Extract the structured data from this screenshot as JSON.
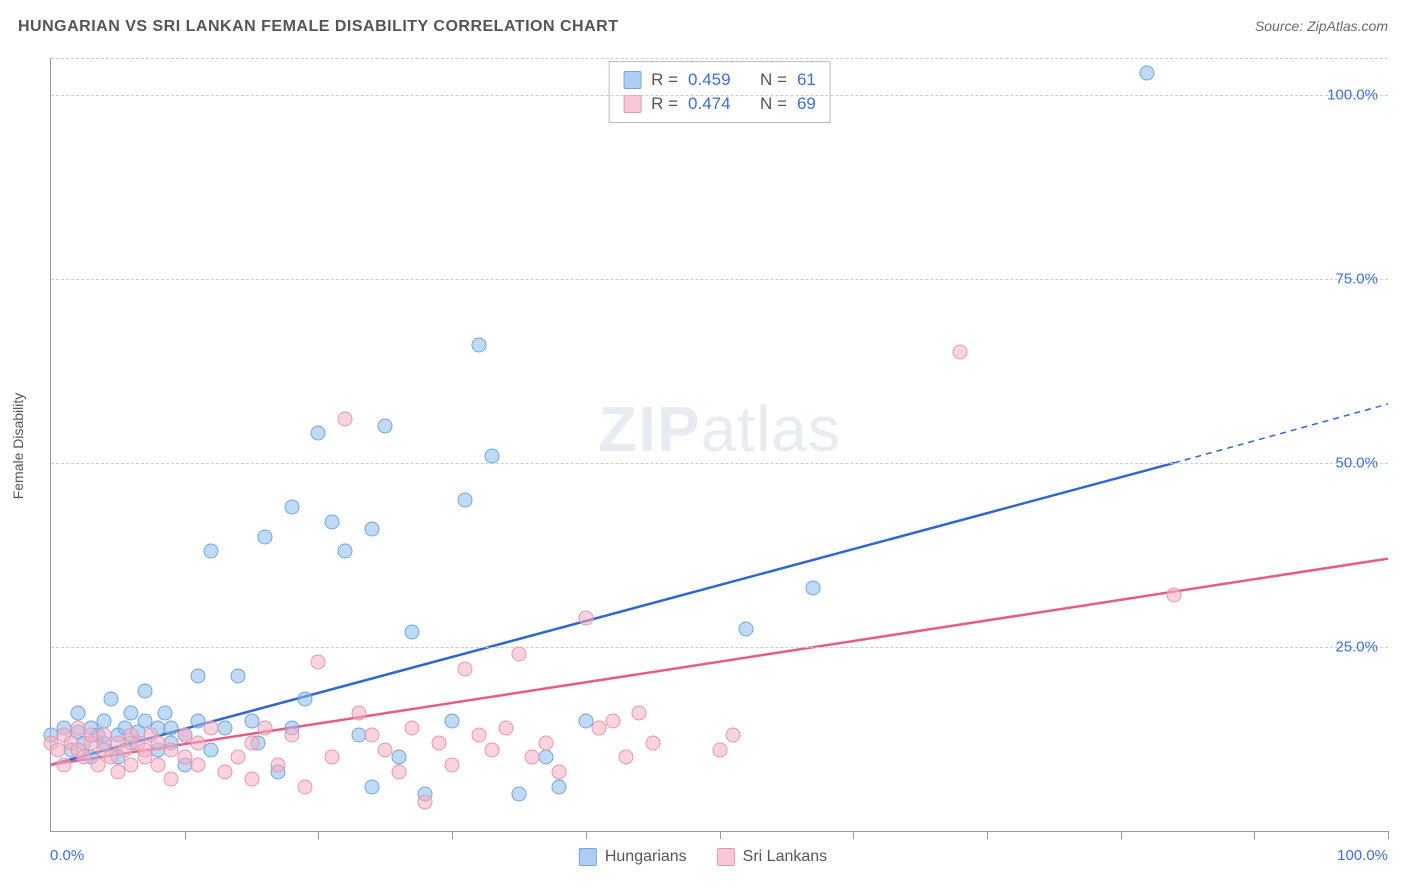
{
  "title": "HUNGARIAN VS SRI LANKAN FEMALE DISABILITY CORRELATION CHART",
  "source": "Source: ZipAtlas.com",
  "watermark_bold": "ZIP",
  "watermark_rest": "atlas",
  "y_axis_label": "Female Disability",
  "chart": {
    "type": "scatter",
    "xlim": [
      0,
      100
    ],
    "ylim": [
      0,
      105
    ],
    "x_ticks": [
      0,
      10,
      20,
      30,
      40,
      50,
      60,
      70,
      80,
      90,
      100
    ],
    "y_gridlines": [
      25,
      50,
      75,
      100,
      105
    ],
    "y_tick_labels": [
      "25.0%",
      "50.0%",
      "75.0%",
      "100.0%"
    ],
    "x_tick_labels": {
      "left": "0.0%",
      "right": "100.0%"
    },
    "background_color": "#ffffff",
    "grid_color": "#cccccc",
    "axis_color": "#999999",
    "label_color": "#3b6fd4",
    "marker_size": 15,
    "series": [
      {
        "name": "Hungarians",
        "color_fill": "rgba(140,185,235,0.55)",
        "color_stroke": "#6fa6de",
        "trend_color": "#2f66d0",
        "trend_width": 2.5,
        "trend": {
          "x1": 0,
          "y1": 9,
          "x2_solid": 84,
          "y2_solid": 50,
          "x2_dash": 100,
          "y2_dash": 58
        },
        "R": "0.459",
        "N": "61",
        "points": [
          [
            0,
            13
          ],
          [
            1,
            14
          ],
          [
            1.5,
            11
          ],
          [
            2,
            13.5
          ],
          [
            2,
            16
          ],
          [
            2.5,
            12
          ],
          [
            3,
            14
          ],
          [
            3,
            10
          ],
          [
            3.5,
            13
          ],
          [
            4,
            15
          ],
          [
            4,
            12
          ],
          [
            4.5,
            18
          ],
          [
            5,
            13
          ],
          [
            5,
            10
          ],
          [
            5.5,
            14
          ],
          [
            6,
            16
          ],
          [
            6,
            12
          ],
          [
            6.5,
            13.5
          ],
          [
            7,
            15
          ],
          [
            7,
            19
          ],
          [
            8,
            14
          ],
          [
            8,
            11
          ],
          [
            8.5,
            16
          ],
          [
            9,
            12
          ],
          [
            9,
            14
          ],
          [
            10,
            13
          ],
          [
            10,
            9
          ],
          [
            11,
            15
          ],
          [
            11,
            21
          ],
          [
            12,
            11
          ],
          [
            12,
            38
          ],
          [
            13,
            14
          ],
          [
            14,
            21
          ],
          [
            15,
            15
          ],
          [
            15.5,
            12
          ],
          [
            16,
            40
          ],
          [
            17,
            8
          ],
          [
            18,
            14
          ],
          [
            18,
            44
          ],
          [
            19,
            18
          ],
          [
            20,
            54
          ],
          [
            21,
            42
          ],
          [
            22,
            38
          ],
          [
            23,
            13
          ],
          [
            24,
            6
          ],
          [
            24,
            41
          ],
          [
            25,
            55
          ],
          [
            26,
            10
          ],
          [
            27,
            27
          ],
          [
            28,
            5
          ],
          [
            30,
            15
          ],
          [
            31,
            45
          ],
          [
            32,
            66
          ],
          [
            33,
            51
          ],
          [
            35,
            5
          ],
          [
            37,
            10
          ],
          [
            38,
            6
          ],
          [
            40,
            15
          ],
          [
            52,
            27.5
          ],
          [
            57,
            33
          ],
          [
            82,
            103
          ]
        ]
      },
      {
        "name": "Sri Lankans",
        "color_fill": "rgba(245,175,195,0.55)",
        "color_stroke": "#e796af",
        "trend_color": "#e85b85",
        "trend_width": 2.5,
        "trend": {
          "x1": 0,
          "y1": 9,
          "x2_solid": 100,
          "y2_solid": 37,
          "x2_dash": 100,
          "y2_dash": 37
        },
        "R": "0.474",
        "N": "69",
        "points": [
          [
            0,
            12
          ],
          [
            0.5,
            11
          ],
          [
            1,
            13
          ],
          [
            1,
            9
          ],
          [
            1.5,
            12
          ],
          [
            2,
            11
          ],
          [
            2,
            14
          ],
          [
            2.5,
            10
          ],
          [
            3,
            12
          ],
          [
            3,
            13
          ],
          [
            3.5,
            9
          ],
          [
            4,
            11
          ],
          [
            4,
            13
          ],
          [
            4.5,
            10
          ],
          [
            5,
            12
          ],
          [
            5,
            8
          ],
          [
            5.5,
            11
          ],
          [
            6,
            13
          ],
          [
            6,
            9
          ],
          [
            6.5,
            12
          ],
          [
            7,
            10
          ],
          [
            7,
            11
          ],
          [
            7.5,
            13
          ],
          [
            8,
            9
          ],
          [
            8,
            12
          ],
          [
            9,
            11
          ],
          [
            9,
            7
          ],
          [
            10,
            10
          ],
          [
            10,
            13
          ],
          [
            11,
            9
          ],
          [
            11,
            12
          ],
          [
            12,
            14
          ],
          [
            13,
            8
          ],
          [
            14,
            10
          ],
          [
            15,
            12
          ],
          [
            15,
            7
          ],
          [
            16,
            14
          ],
          [
            17,
            9
          ],
          [
            18,
            13
          ],
          [
            19,
            6
          ],
          [
            20,
            23
          ],
          [
            21,
            10
          ],
          [
            22,
            56
          ],
          [
            23,
            16
          ],
          [
            24,
            13
          ],
          [
            25,
            11
          ],
          [
            26,
            8
          ],
          [
            27,
            14
          ],
          [
            28,
            4
          ],
          [
            29,
            12
          ],
          [
            30,
            9
          ],
          [
            31,
            22
          ],
          [
            32,
            13
          ],
          [
            33,
            11
          ],
          [
            34,
            14
          ],
          [
            35,
            24
          ],
          [
            36,
            10
          ],
          [
            37,
            12
          ],
          [
            38,
            8
          ],
          [
            40,
            29
          ],
          [
            41,
            14
          ],
          [
            42,
            15
          ],
          [
            43,
            10
          ],
          [
            44,
            16
          ],
          [
            45,
            12
          ],
          [
            50,
            11
          ],
          [
            68,
            65
          ],
          [
            84,
            32
          ],
          [
            51,
            13
          ]
        ]
      }
    ]
  },
  "legend": {
    "series": [
      {
        "name": "Hungarians"
      },
      {
        "name": "Sri Lankans"
      }
    ]
  },
  "stats_labels": {
    "R": "R =",
    "N": "N ="
  }
}
